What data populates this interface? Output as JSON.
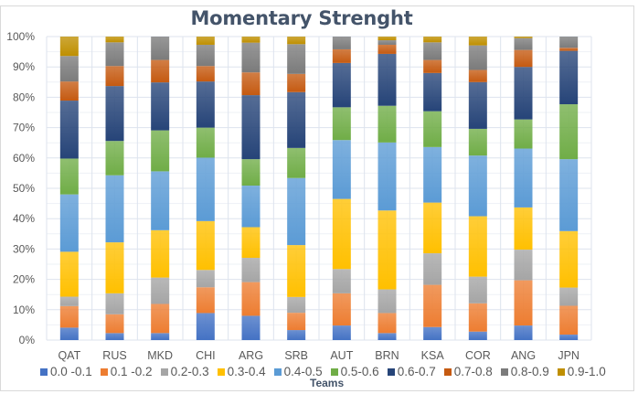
{
  "chart_data": {
    "type": "bar",
    "stacked": "percent",
    "title": "Momentary Strenght",
    "xlabel": "Teams",
    "ylabel": "",
    "ylim": [
      0,
      100
    ],
    "yticks": [
      "0%",
      "10%",
      "20%",
      "30%",
      "40%",
      "50%",
      "60%",
      "70%",
      "80%",
      "90%",
      "100%"
    ],
    "grid": true,
    "legend_position": "bottom",
    "categories": [
      "QAT",
      "RUS",
      "MKD",
      "CHI",
      "ARG",
      "SRB",
      "AUT",
      "BRN",
      "KSA",
      "COR",
      "ANG",
      "JPN"
    ],
    "series": [
      {
        "name": "0.0 -0.1",
        "color": "#4472c4",
        "values": [
          4.1,
          2.3,
          2.3,
          8.9,
          8.0,
          3.3,
          4.8,
          2.3,
          4.3,
          2.8,
          4.8,
          1.8
        ]
      },
      {
        "name": "0.1 -0.2",
        "color": "#ed7d31",
        "values": [
          7.1,
          6.2,
          9.6,
          8.5,
          11.1,
          5.7,
          10.6,
          6.6,
          13.9,
          9.3,
          14.9,
          9.5
        ]
      },
      {
        "name": "0.2-0.3",
        "color": "#a5a5a5",
        "values": [
          3.1,
          6.9,
          8.7,
          5.7,
          8.0,
          5.2,
          8.0,
          7.8,
          10.4,
          8.8,
          10.1,
          6.0
        ]
      },
      {
        "name": "0.3-0.4",
        "color": "#ffc000",
        "values": [
          14.8,
          16.8,
          15.6,
          16.1,
          10.1,
          17.1,
          23.1,
          26.0,
          16.7,
          19.9,
          13.9,
          18.6
        ]
      },
      {
        "name": "0.4-0.5",
        "color": "#5b9bd5",
        "values": [
          18.9,
          22.1,
          19.4,
          20.9,
          13.7,
          22.1,
          19.4,
          22.4,
          18.3,
          20.0,
          19.4,
          23.7
        ]
      },
      {
        "name": "0.5-0.6",
        "color": "#70ad47",
        "values": [
          11.8,
          11.3,
          13.5,
          9.9,
          8.7,
          9.9,
          10.8,
          12.1,
          11.8,
          8.8,
          9.6,
          18.1
        ]
      },
      {
        "name": "0.6-0.7",
        "color": "#264478",
        "values": [
          19.1,
          18.1,
          15.8,
          15.2,
          21.1,
          18.4,
          14.6,
          17.1,
          12.6,
          15.4,
          17.3,
          17.6
        ]
      },
      {
        "name": "0.7-0.8",
        "color": "#c55a11",
        "values": [
          6.3,
          6.6,
          7.4,
          5.1,
          7.5,
          6.0,
          4.5,
          3.0,
          4.3,
          4.0,
          5.6,
          1.0
        ]
      },
      {
        "name": "0.8-0.9",
        "color": "#7b7b7b",
        "values": [
          8.4,
          7.8,
          7.7,
          7.0,
          9.8,
          9.8,
          4.2,
          1.5,
          5.8,
          8.1,
          3.9,
          3.7
        ]
      },
      {
        "name": "0.9-1.0",
        "color": "#bf8f00",
        "values": [
          6.4,
          1.9,
          0,
          2.7,
          2.0,
          2.5,
          0,
          1.2,
          1.9,
          2.9,
          0.5,
          0
        ]
      }
    ]
  }
}
